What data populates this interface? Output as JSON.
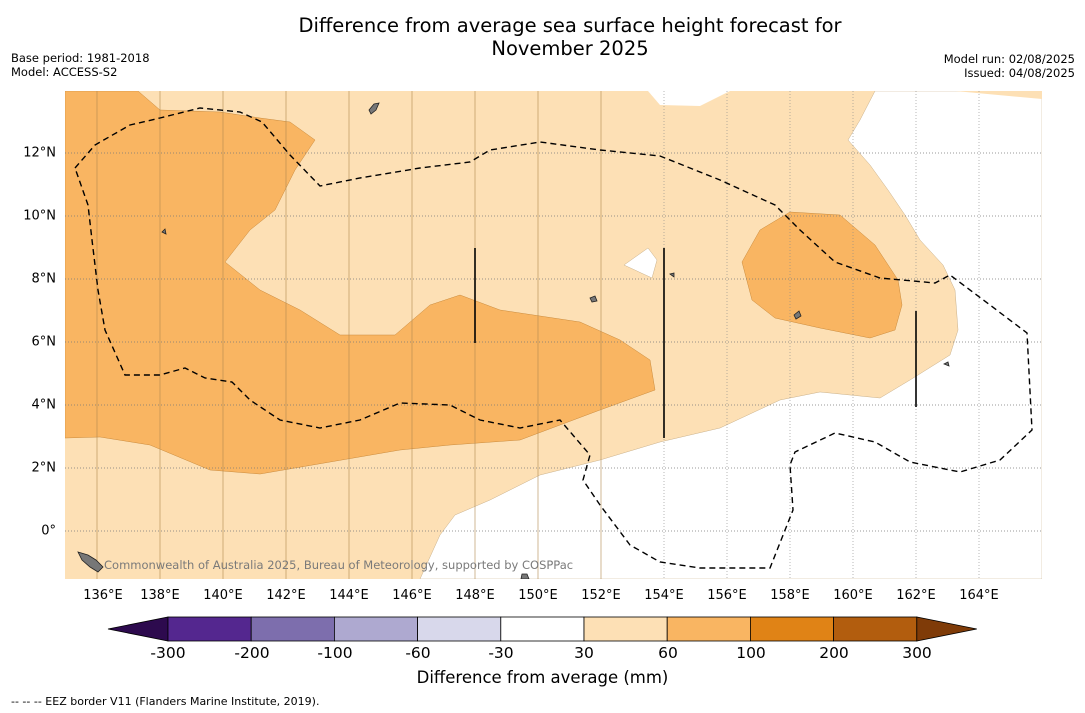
{
  "title_line1": "Difference from average sea surface height forecast for",
  "title_line2": "November 2025",
  "meta_left": {
    "base_period": "Base period: 1981-2018",
    "model": "Model: ACCESS-S2"
  },
  "meta_right": {
    "model_run": "Model run: 02/08/2025",
    "issued": "Issued: 04/08/2025"
  },
  "credit": "Commonwealth of Australia 2025, Bureau of Meteorology, supported by COSPPac",
  "x_ticks": [
    "136°E",
    "138°E",
    "140°E",
    "142°E",
    "144°E",
    "146°E",
    "148°E",
    "150°E",
    "152°E",
    "154°E",
    "156°E",
    "158°E",
    "160°E",
    "162°E",
    "164°E"
  ],
  "y_ticks": [
    "12°N",
    "10°N",
    "8°N",
    "6°N",
    "4°N",
    "2°N",
    "0°"
  ],
  "colorbar": {
    "title": "Difference from average (mm)",
    "labels": [
      "-300",
      "-200",
      "-100",
      "-60",
      "-30",
      "30",
      "60",
      "100",
      "200",
      "300"
    ],
    "bins": [
      {
        "from": -300,
        "to": -200,
        "color": "#54278f"
      },
      {
        "from": -200,
        "to": -100,
        "color": "#7d6ead"
      },
      {
        "from": -100,
        "to": -60,
        "color": "#aea9d0"
      },
      {
        "from": -60,
        "to": -30,
        "color": "#d8d8eb"
      },
      {
        "from": -30,
        "to": 30,
        "color": "#ffffff"
      },
      {
        "from": 30,
        "to": 60,
        "color": "#fde0b5"
      },
      {
        "from": 60,
        "to": 100,
        "color": "#f9b562"
      },
      {
        "from": 100,
        "to": 200,
        "color": "#e08316"
      },
      {
        "from": 200,
        "to": 300,
        "color": "#b25d0e"
      }
    ],
    "under_color": "#2d0a4e",
    "over_color": "#7f3b08"
  },
  "footnote": "--  --  -- EEZ border V11 (Flanders Marine Institute, 2019)."
}
